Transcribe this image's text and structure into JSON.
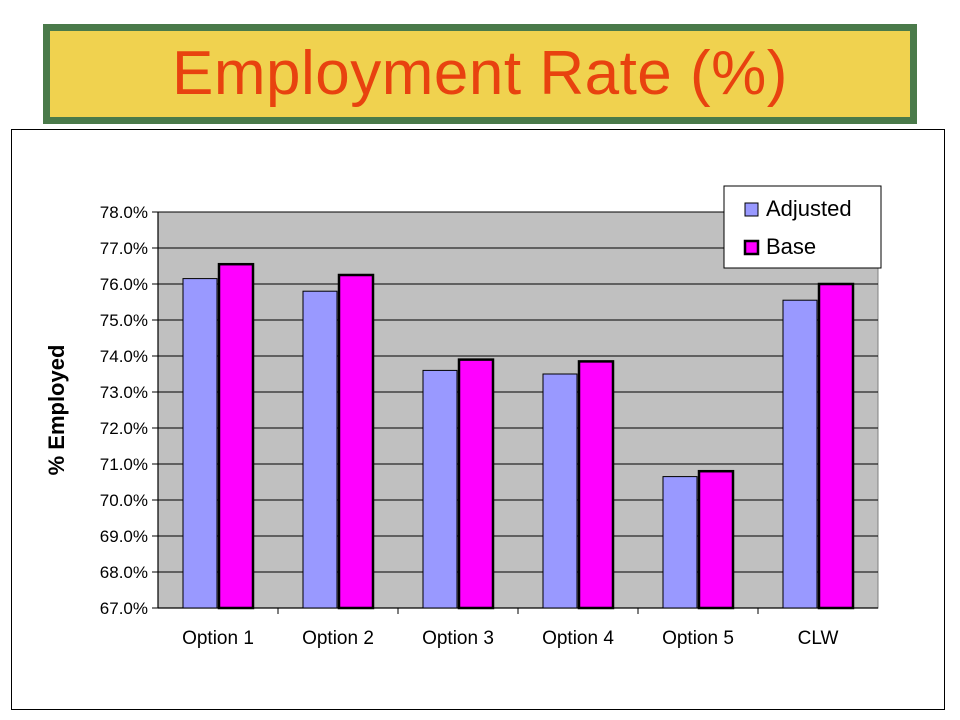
{
  "title": "Employment Rate (%)",
  "chart_data": {
    "type": "bar",
    "title": "Employment Rate (%)",
    "xlabel": "",
    "ylabel": "% Employed",
    "ylim": [
      67.0,
      78.0
    ],
    "yticks": [
      "67.0%",
      "68.0%",
      "69.0%",
      "70.0%",
      "71.0%",
      "72.0%",
      "73.0%",
      "74.0%",
      "75.0%",
      "76.0%",
      "77.0%",
      "78.0%"
    ],
    "categories": [
      "Option 1",
      "Option 2",
      "Option 3",
      "Option 4",
      "Option 5",
      "CLW"
    ],
    "series": [
      {
        "name": "Adjusted",
        "values": [
          76.15,
          75.8,
          73.6,
          73.5,
          70.65,
          75.55
        ],
        "color": "#9999ff"
      },
      {
        "name": "Base",
        "values": [
          76.55,
          76.25,
          73.9,
          73.85,
          70.8,
          76.0
        ],
        "color": "#ff00ff"
      }
    ],
    "grid": true,
    "legend_position": "top-right",
    "plot_background": "#c0c0c0"
  }
}
